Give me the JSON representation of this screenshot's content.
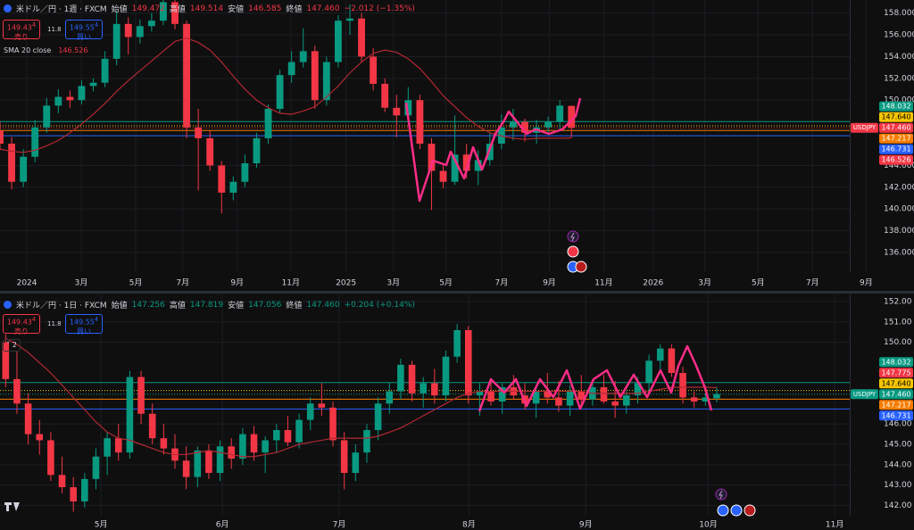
{
  "chart_data": [
    {
      "type": "candlestick",
      "title": "米ドル／円 · 1週 · FXCM",
      "symbol": "USDJPY",
      "header": {
        "open_label": "始値",
        "open": "149.472",
        "high_label": "高値",
        "high": "149.514",
        "low_label": "安値",
        "low": "146.585",
        "close_label": "終値",
        "close": "147.460",
        "change": "−2.012 (−1.35%)"
      },
      "sell": {
        "price": "149.43",
        "pip": "4",
        "label": "売り"
      },
      "spread": "11.8",
      "buy": {
        "price": "149.55",
        "pip": "4",
        "label": "買い"
      },
      "indicator": {
        "name": "SMA 20 close",
        "value": 146.526
      },
      "ylim": [
        134.2,
        159.2
      ],
      "xlim": [
        0,
        225
      ],
      "yticks": [
        {
          "value": 136,
          "label": "136.000"
        },
        {
          "value": 138,
          "label": "138.000"
        },
        {
          "value": 140,
          "label": "140.000"
        },
        {
          "value": 142,
          "label": "142.000"
        },
        {
          "value": 144,
          "label": "144.000"
        },
        {
          "value": 150,
          "label": "150.000"
        },
        {
          "value": 152,
          "label": "152.000"
        },
        {
          "value": 154,
          "label": "154.000"
        },
        {
          "value": 156,
          "label": "156.000"
        },
        {
          "value": 158,
          "label": "158.000"
        }
      ],
      "xticks": [
        {
          "value": 6.9,
          "label": "2024"
        },
        {
          "value": 20.9,
          "label": "3月"
        },
        {
          "value": 34.9,
          "label": "5月"
        },
        {
          "value": 47,
          "label": "7月"
        },
        {
          "value": 61,
          "label": "9月"
        },
        {
          "value": 74.8,
          "label": "11月"
        },
        {
          "value": 89,
          "label": "2025"
        },
        {
          "value": 101.2,
          "label": "3月"
        },
        {
          "value": 114.7,
          "label": "5月"
        },
        {
          "value": 129,
          "label": "7月"
        },
        {
          "value": 141.3,
          "label": "9月"
        },
        {
          "value": 155.3,
          "label": "11月"
        },
        {
          "value": 168,
          "label": "2026"
        },
        {
          "value": 181.3,
          "label": "3月"
        },
        {
          "value": 195,
          "label": "5月"
        },
        {
          "value": 209,
          "label": "7月"
        },
        {
          "value": 222.8,
          "label": "9月"
        }
      ],
      "up_color": "#089981",
      "down_color": "#f23645",
      "sma_color": "#b22833",
      "x": [
        0,
        3,
        6,
        9,
        12,
        15,
        18,
        21,
        24,
        27,
        30,
        33,
        36,
        39,
        42,
        45,
        48,
        51,
        54,
        57,
        60,
        63,
        66,
        69,
        72,
        75,
        78,
        81,
        84,
        87,
        90,
        93,
        96,
        99,
        102,
        105,
        108,
        111,
        114,
        117,
        120,
        123,
        126,
        129,
        132,
        135,
        138,
        141,
        144,
        147
      ],
      "ohlc": [
        [
          147.2,
          148.0,
          145.4,
          146.0
        ],
        [
          146.0,
          146.6,
          141.8,
          142.5
        ],
        [
          142.5,
          145.5,
          142.0,
          144.8
        ],
        [
          144.8,
          148.2,
          144.3,
          147.5
        ],
        [
          147.5,
          150.2,
          147.0,
          149.5
        ],
        [
          149.5,
          151.0,
          148.8,
          150.3
        ],
        [
          150.3,
          150.9,
          149.3,
          150.0
        ],
        [
          150.0,
          151.8,
          149.6,
          151.3
        ],
        [
          151.3,
          152.0,
          150.8,
          151.6
        ],
        [
          151.6,
          154.5,
          151.2,
          153.8
        ],
        [
          153.8,
          158.2,
          153.2,
          157.0
        ],
        [
          157.0,
          157.6,
          154.2,
          155.8
        ],
        [
          155.8,
          157.4,
          155.2,
          156.8
        ],
        [
          156.8,
          158.0,
          156.3,
          157.3
        ],
        [
          157.3,
          159.5,
          156.9,
          159.0
        ],
        [
          159.0,
          159.4,
          156.5,
          157.0
        ],
        [
          157.0,
          157.3,
          146.5,
          147.5
        ],
        [
          147.5,
          149.2,
          141.7,
          146.5
        ],
        [
          146.5,
          147.2,
          143.5,
          144.0
        ],
        [
          144.0,
          144.4,
          139.6,
          141.5
        ],
        [
          141.5,
          143.0,
          140.8,
          142.5
        ],
        [
          142.5,
          145.0,
          142.0,
          144.2
        ],
        [
          144.2,
          147.0,
          143.8,
          146.5
        ],
        [
          146.5,
          149.6,
          146.0,
          149.2
        ],
        [
          149.2,
          152.8,
          148.8,
          152.3
        ],
        [
          152.3,
          154.5,
          151.6,
          153.5
        ],
        [
          153.5,
          156.6,
          153.0,
          154.5
        ],
        [
          154.5,
          155.0,
          149.2,
          150.0
        ],
        [
          150.0,
          154.0,
          149.5,
          153.5
        ],
        [
          153.5,
          157.8,
          153.0,
          157.3
        ],
        [
          157.3,
          158.8,
          156.0,
          157.5
        ],
        [
          157.5,
          158.0,
          153.5,
          154.0
        ],
        [
          154.0,
          154.8,
          150.9,
          151.5
        ],
        [
          151.5,
          152.0,
          148.9,
          149.3
        ],
        [
          149.3,
          150.5,
          146.6,
          148.6
        ],
        [
          148.6,
          151.2,
          148.2,
          150.0
        ],
        [
          150.0,
          150.5,
          145.5,
          146.0
        ],
        [
          146.0,
          146.5,
          139.9,
          143.5
        ],
        [
          143.5,
          144.0,
          141.9,
          142.5
        ],
        [
          142.5,
          148.6,
          142.2,
          145.0
        ],
        [
          145.0,
          146.0,
          142.8,
          143.5
        ],
        [
          143.5,
          145.4,
          142.2,
          144.5
        ],
        [
          144.5,
          147.0,
          144.0,
          146.0
        ],
        [
          146.0,
          148.7,
          145.5,
          147.5
        ],
        [
          147.5,
          149.2,
          146.3,
          148.0
        ],
        [
          148.0,
          148.3,
          146.2,
          147.0
        ],
        [
          147.0,
          148.2,
          146.0,
          147.5
        ],
        [
          147.5,
          148.5,
          146.8,
          148.0
        ],
        [
          148.0,
          150.0,
          147.3,
          149.5
        ],
        [
          149.472,
          149.514,
          146.585,
          147.46
        ]
      ],
      "sma": [
        145.5,
        145.3,
        145.2,
        145.4,
        145.8,
        146.3,
        147.0,
        147.8,
        148.7,
        149.7,
        150.8,
        151.8,
        152.7,
        153.6,
        154.5,
        155.4,
        155.7,
        155.3,
        154.6,
        153.5,
        152.2,
        151.0,
        150.0,
        149.3,
        148.8,
        148.7,
        149.0,
        149.4,
        150.3,
        151.3,
        152.5,
        153.5,
        154.3,
        154.6,
        154.4,
        153.8,
        152.9,
        151.7,
        150.4,
        149.4,
        148.4,
        147.6,
        147.0,
        146.7,
        146.5,
        146.4,
        146.5,
        146.5,
        146.5,
        146.526
      ],
      "levels": [
        {
          "value": 148.032,
          "label": "148.032",
          "color": "#089981",
          "style": "solid"
        },
        {
          "value": 147.64,
          "label": "147.640",
          "color": "#f7c600",
          "style": "dotted"
        },
        {
          "value": 147.46,
          "label": "147.460",
          "color": "#f23645",
          "style": "dotted",
          "current": true
        },
        {
          "value": 147.217,
          "label": "147.217",
          "color": "#f57c00",
          "style": "solid"
        },
        {
          "value": 146.731,
          "label": "146.731",
          "color": "#2962ff",
          "style": "solid"
        },
        {
          "value": 146.526,
          "label": "146.526",
          "color": "#f23645",
          "style": "none"
        }
      ]
    },
    {
      "type": "candlestick",
      "title": "米ドル／円 · 1日 · FXCM",
      "symbol": "USDJPY",
      "header": {
        "open_label": "始値",
        "open": "147.256",
        "high_label": "高値",
        "high": "147.819",
        "low_label": "安値",
        "low": "147.056",
        "close_label": "終値",
        "close": "147.460",
        "change": "+0.204 (+0.14%)"
      },
      "sell": {
        "price": "149.43",
        "pip": "4",
        "label": "売り"
      },
      "spread": "11.8",
      "buy": {
        "price": "149.55",
        "pip": "4",
        "label": "買い"
      },
      "indicators_collapsed": 2,
      "ylim": [
        141.5,
        152.35
      ],
      "xlim": [
        0,
        155
      ],
      "yticks": [
        {
          "value": 142,
          "label": "142.00"
        },
        {
          "value": 143,
          "label": "143.00"
        },
        {
          "value": 144,
          "label": "144.00"
        },
        {
          "value": 145,
          "label": "145.00"
        },
        {
          "value": 146,
          "label": "146.00"
        },
        {
          "value": 150,
          "label": "150.00"
        },
        {
          "value": 151,
          "label": "151.00"
        },
        {
          "value": 152,
          "label": "152.00"
        }
      ],
      "xticks": [
        {
          "value": 17.9,
          "label": "5月"
        },
        {
          "value": 39.4,
          "label": "6月"
        },
        {
          "value": 60.1,
          "label": "7月"
        },
        {
          "value": 83.1,
          "label": "8月"
        },
        {
          "value": 103.8,
          "label": "9月"
        },
        {
          "value": 125.5,
          "label": "10月"
        },
        {
          "value": 147.9,
          "label": "11月"
        }
      ],
      "up_color": "#089981",
      "down_color": "#f23645",
      "sma_color": "#b22833",
      "x": [
        1,
        3,
        5,
        7,
        9,
        11,
        13,
        15,
        17,
        19,
        21,
        23,
        25,
        27,
        29,
        31,
        33,
        35,
        37,
        39,
        41,
        43,
        45,
        47,
        49,
        51,
        53,
        55,
        57,
        59,
        61,
        63,
        65,
        67,
        69,
        71,
        73,
        75,
        77,
        79,
        81,
        83,
        85,
        87,
        89,
        91,
        93,
        95,
        97,
        99,
        101,
        103,
        105,
        107,
        109,
        111,
        113,
        115,
        117,
        119,
        121,
        123,
        125,
        127
      ],
      "ohlc": [
        [
          150.0,
          150.4,
          147.8,
          148.2
        ],
        [
          148.2,
          149.6,
          146.5,
          147.0
        ],
        [
          147.0,
          147.5,
          145.0,
          145.5
        ],
        [
          145.5,
          146.2,
          144.5,
          145.2
        ],
        [
          145.2,
          145.6,
          143.2,
          143.5
        ],
        [
          143.5,
          144.4,
          142.6,
          142.9
        ],
        [
          142.9,
          143.4,
          141.7,
          142.2
        ],
        [
          142.2,
          143.6,
          141.9,
          143.3
        ],
        [
          143.3,
          144.8,
          142.8,
          144.4
        ],
        [
          144.4,
          145.6,
          143.5,
          145.3
        ],
        [
          145.3,
          146.0,
          144.2,
          144.6
        ],
        [
          144.6,
          148.6,
          144.3,
          148.3
        ],
        [
          148.3,
          148.6,
          146.0,
          146.5
        ],
        [
          146.5,
          147.0,
          145.0,
          145.3
        ],
        [
          145.3,
          146.0,
          144.5,
          144.8
        ],
        [
          144.8,
          145.5,
          143.8,
          144.2
        ],
        [
          144.2,
          144.9,
          142.8,
          143.4
        ],
        [
          143.4,
          144.9,
          142.9,
          144.7
        ],
        [
          144.7,
          145.0,
          143.3,
          143.6
        ],
        [
          143.6,
          145.2,
          143.2,
          144.9
        ],
        [
          144.9,
          145.3,
          143.8,
          144.3
        ],
        [
          144.3,
          145.8,
          144.0,
          145.5
        ],
        [
          145.5,
          145.9,
          144.2,
          144.6
        ],
        [
          144.6,
          145.4,
          143.6,
          145.2
        ],
        [
          145.2,
          146.0,
          144.6,
          145.7
        ],
        [
          145.7,
          146.4,
          144.9,
          145.1
        ],
        [
          145.1,
          146.5,
          144.8,
          146.2
        ],
        [
          146.2,
          147.3,
          145.7,
          147.0
        ],
        [
          147.0,
          148.0,
          146.4,
          146.8
        ],
        [
          146.8,
          147.1,
          144.9,
          145.2
        ],
        [
          145.2,
          145.6,
          142.8,
          143.6
        ],
        [
          143.6,
          145.0,
          143.2,
          144.6
        ],
        [
          144.6,
          146.0,
          144.1,
          145.7
        ],
        [
          145.7,
          147.3,
          145.2,
          147.0
        ],
        [
          147.0,
          148.0,
          146.5,
          147.6
        ],
        [
          147.6,
          149.2,
          147.2,
          148.9
        ],
        [
          148.9,
          149.1,
          147.1,
          147.5
        ],
        [
          147.5,
          148.3,
          146.8,
          148.0
        ],
        [
          148.0,
          148.7,
          147.0,
          147.4
        ],
        [
          147.4,
          149.6,
          147.1,
          149.3
        ],
        [
          149.3,
          150.9,
          149.0,
          150.6
        ],
        [
          150.6,
          150.8,
          147.0,
          147.4
        ],
        [
          147.4,
          148.0,
          146.4,
          147.6
        ],
        [
          147.6,
          148.2,
          146.9,
          147.1
        ],
        [
          147.1,
          148.0,
          146.5,
          147.8
        ],
        [
          147.8,
          148.4,
          147.2,
          147.4
        ],
        [
          147.4,
          148.0,
          146.7,
          147.0
        ],
        [
          147.0,
          147.8,
          146.3,
          147.6
        ],
        [
          147.6,
          148.5,
          147.0,
          147.3
        ],
        [
          147.3,
          148.1,
          146.6,
          146.9
        ],
        [
          146.9,
          147.9,
          146.4,
          147.6
        ],
        [
          147.6,
          148.4,
          147.0,
          147.2
        ],
        [
          147.2,
          148.0,
          146.9,
          147.8
        ],
        [
          147.8,
          148.4,
          147.0,
          147.1
        ],
        [
          147.1,
          148.1,
          146.3,
          146.9
        ],
        [
          146.9,
          147.6,
          146.5,
          147.4
        ],
        [
          147.4,
          148.3,
          147.0,
          148.0
        ],
        [
          148.0,
          149.4,
          147.6,
          149.1
        ],
        [
          149.1,
          149.9,
          148.5,
          149.7
        ],
        [
          149.7,
          149.9,
          148.3,
          148.5
        ],
        [
          148.5,
          148.8,
          147.0,
          147.3
        ],
        [
          147.3,
          147.6,
          146.8,
          147.1
        ],
        [
          147.1,
          147.5,
          146.9,
          147.3
        ],
        [
          147.256,
          147.819,
          147.056,
          147.46
        ]
      ],
      "sma": [
        150.2,
        149.9,
        149.5,
        149.0,
        148.5,
        147.9,
        147.3,
        146.7,
        146.1,
        145.6,
        145.3,
        145.2,
        145.0,
        144.8,
        144.6,
        144.5,
        144.5,
        144.6,
        144.7,
        144.6,
        144.5,
        144.4,
        144.4,
        144.5,
        144.6,
        144.8,
        145.0,
        145.1,
        145.2,
        145.3,
        145.3,
        145.3,
        145.3,
        145.4,
        145.6,
        145.8,
        146.1,
        146.4,
        146.7,
        147.0,
        147.3,
        147.5,
        147.6,
        147.6,
        147.6,
        147.6,
        147.6,
        147.6,
        147.6,
        147.6,
        147.6,
        147.6,
        147.5,
        147.5,
        147.5,
        147.5,
        147.5,
        147.6,
        147.7,
        147.8,
        147.8,
        147.8,
        147.8,
        147.775
      ],
      "levels": [
        {
          "value": 148.032,
          "label": "148.032",
          "color": "#089981",
          "style": "solid"
        },
        {
          "value": 147.775,
          "label": "147.775",
          "color": "#f23645",
          "style": "none"
        },
        {
          "value": 147.64,
          "label": "147.640",
          "color": "#f7c600",
          "style": "dotted"
        },
        {
          "value": 147.46,
          "label": "147.460",
          "color": "#089981",
          "style": "dotted",
          "current": true
        },
        {
          "value": 147.217,
          "label": "147.217",
          "color": "#f57c00",
          "style": "solid"
        },
        {
          "value": 146.731,
          "label": "146.731",
          "color": "#2962ff",
          "style": "solid"
        }
      ]
    }
  ]
}
